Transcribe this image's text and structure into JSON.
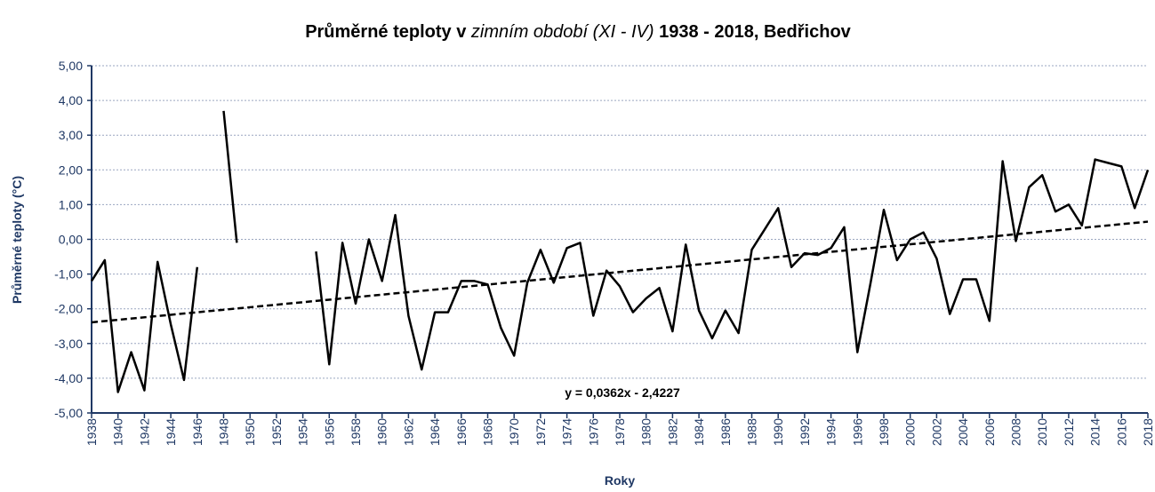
{
  "chart_data": {
    "type": "line",
    "title_parts": [
      "Průměrné teploty v",
      "zimním období (XI - IV)",
      "1938 - 2018, Bedřichov"
    ],
    "y_label": "Průměrné teploty (°C)",
    "x_label": "Roky",
    "x": [
      1938,
      1939,
      1940,
      1941,
      1942,
      1943,
      1944,
      1945,
      1946,
      1947,
      1948,
      1949,
      1950,
      1951,
      1952,
      1953,
      1954,
      1955,
      1956,
      1957,
      1958,
      1959,
      1960,
      1961,
      1962,
      1963,
      1964,
      1965,
      1966,
      1967,
      1968,
      1969,
      1970,
      1971,
      1972,
      1973,
      1974,
      1975,
      1976,
      1977,
      1978,
      1979,
      1980,
      1981,
      1982,
      1983,
      1984,
      1985,
      1986,
      1987,
      1988,
      1989,
      1990,
      1991,
      1992,
      1993,
      1994,
      1995,
      1996,
      1997,
      1998,
      1999,
      2000,
      2001,
      2002,
      2003,
      2004,
      2005,
      2006,
      2007,
      2008,
      2009,
      2010,
      2011,
      2012,
      2013,
      2014,
      2015,
      2016,
      2017,
      2018
    ],
    "series": [
      {
        "name": "Průměrné teploty",
        "color": "#000000",
        "values": [
          -1.2,
          -0.6,
          -4.4,
          -3.25,
          -4.35,
          -0.65,
          -2.45,
          -4.05,
          -0.8,
          null,
          3.7,
          -0.1,
          null,
          null,
          null,
          null,
          null,
          -0.35,
          -3.6,
          -0.1,
          -1.85,
          0.0,
          -1.2,
          0.7,
          -2.2,
          -3.75,
          -2.1,
          -2.1,
          -1.2,
          -1.2,
          -1.3,
          -2.55,
          -3.35,
          -1.25,
          -0.3,
          -1.25,
          -0.25,
          -0.1,
          -2.2,
          -0.9,
          -1.35,
          -2.1,
          -1.7,
          -1.4,
          -2.65,
          -0.15,
          -2.05,
          -2.85,
          -2.05,
          -2.7,
          -0.3,
          0.3,
          0.9,
          -0.8,
          -0.4,
          -0.45,
          -0.25,
          0.35,
          -3.25,
          -1.25,
          0.85,
          -0.6,
          0.0,
          0.2,
          -0.55,
          -2.15,
          -1.15,
          -1.15,
          -2.35,
          2.25,
          -0.05,
          1.5,
          1.85,
          0.8,
          1.0,
          0.4,
          2.3,
          2.2,
          2.1,
          0.9,
          2.0
        ]
      }
    ],
    "trend_line": {
      "label": "y = 0,0362x - 2,4227",
      "x": [
        1938,
        2018
      ],
      "values": [
        -2.39,
        0.51
      ],
      "color": "#000000"
    },
    "xlim": [
      1938,
      2018
    ],
    "xticks": [
      1938,
      1940,
      1942,
      1944,
      1946,
      1948,
      1950,
      1952,
      1954,
      1956,
      1958,
      1960,
      1962,
      1964,
      1966,
      1968,
      1970,
      1972,
      1974,
      1976,
      1978,
      1980,
      1982,
      1984,
      1986,
      1988,
      1990,
      1992,
      1994,
      1996,
      1998,
      2000,
      2002,
      2004,
      2006,
      2008,
      2010,
      2012,
      2014,
      2016,
      2018
    ],
    "ylim": [
      -5,
      5
    ],
    "yticks": [
      {
        "value": -5,
        "label": "-5,00"
      },
      {
        "value": -4,
        "label": "-4,00"
      },
      {
        "value": -3,
        "label": "-3,00"
      },
      {
        "value": -2,
        "label": "-2,00"
      },
      {
        "value": -1,
        "label": "-1,00"
      },
      {
        "value": 0,
        "label": "0,00"
      },
      {
        "value": 1,
        "label": "1,00"
      },
      {
        "value": 2,
        "label": "2,00"
      },
      {
        "value": 3,
        "label": "3,00"
      },
      {
        "value": 4,
        "label": "4,00"
      },
      {
        "value": 5,
        "label": "5,00"
      }
    ],
    "grid": true
  }
}
